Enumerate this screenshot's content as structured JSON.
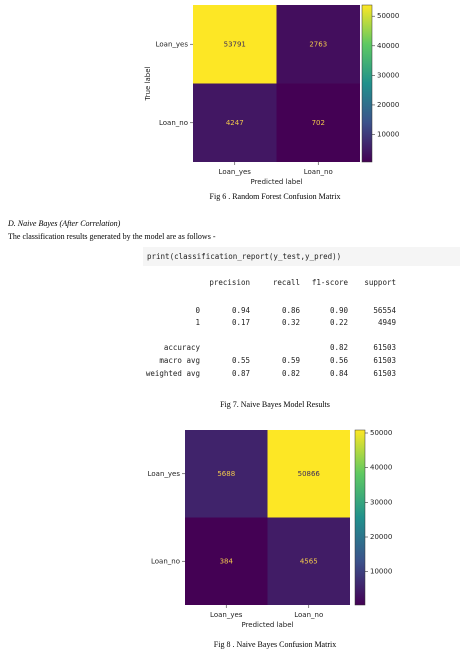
{
  "chart_data": [
    {
      "type": "heatmap",
      "x_categories": [
        "Loan_yes",
        "Loan_no"
      ],
      "y_categories": [
        "Loan_yes",
        "Loan_no"
      ],
      "values": [
        [
          53791,
          2763
        ],
        [
          4247,
          702
        ]
      ],
      "xlabel": "Predicted label",
      "ylabel": "True label",
      "colormap": "viridis",
      "clim": [
        702,
        53791
      ],
      "cticks": [
        10000,
        20000,
        30000,
        40000,
        50000
      ]
    },
    {
      "type": "heatmap",
      "x_categories": [
        "Loan_yes",
        "Loan_no"
      ],
      "y_categories": [
        "Loan_yes",
        "Loan_no"
      ],
      "values": [
        [
          5688,
          50866
        ],
        [
          384,
          4565
        ]
      ],
      "xlabel": "Predicted label",
      "colormap": "viridis",
      "clim": [
        384,
        50866
      ],
      "cticks": [
        10000,
        20000,
        30000,
        40000,
        50000
      ]
    }
  ],
  "document": {
    "captions": [
      "Fig 6 . Random Forest Confusion Matrix",
      "Fig 7. Naive Bayes Model Results",
      "Fig 8 . Naive Bayes Confusion Matrix"
    ],
    "section_heading": "D.   Naive Bayes (After Correlation)",
    "body": "The classification results generated by the model are as follows -",
    "code": "print(classification_report(y_test,y_pred))",
    "report": {
      "header": [
        "precision",
        "recall",
        "f1-score",
        "support"
      ],
      "rows": [
        [
          "0",
          "0.94",
          "0.86",
          "0.90",
          "56554"
        ],
        [
          "1",
          "0.17",
          "0.32",
          "0.22",
          "4949"
        ],
        [
          "accuracy",
          null,
          null,
          "0.82",
          "61503"
        ],
        [
          "macro avg",
          "0.55",
          "0.59",
          "0.56",
          "61503"
        ],
        [
          "weighted avg",
          "0.87",
          "0.82",
          "0.84",
          "61503"
        ]
      ]
    }
  }
}
